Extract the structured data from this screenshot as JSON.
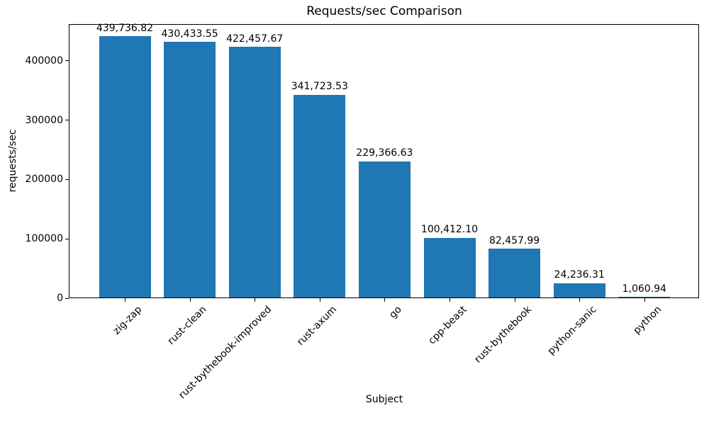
{
  "chart_data": {
    "type": "bar",
    "title": "Requests/sec Comparison",
    "xlabel": "Subject",
    "ylabel": "requests/sec",
    "categories": [
      "zig-zap",
      "rust-clean",
      "rust-bythebook-improved",
      "rust-axum",
      "go",
      "cpp-beast",
      "rust-bythebook",
      "python-sanic",
      "python"
    ],
    "values": [
      439736.82,
      430433.55,
      422457.67,
      341723.53,
      229366.63,
      100412.1,
      82457.99,
      24236.31,
      1060.94
    ],
    "bar_labels": [
      "439,736.82",
      "430,433.55",
      "422,457.67",
      "341,723.53",
      "229,366.63",
      "100,412.10",
      "82,457.99",
      "24,236.31",
      "1,060.94"
    ],
    "yticks": [
      0,
      100000,
      200000,
      300000,
      400000
    ],
    "ytick_labels": [
      "0",
      "100000",
      "200000",
      "300000",
      "400000"
    ],
    "ylim": [
      0,
      461724
    ],
    "bar_color": "#1f77b4",
    "grid": false,
    "legend": null
  }
}
